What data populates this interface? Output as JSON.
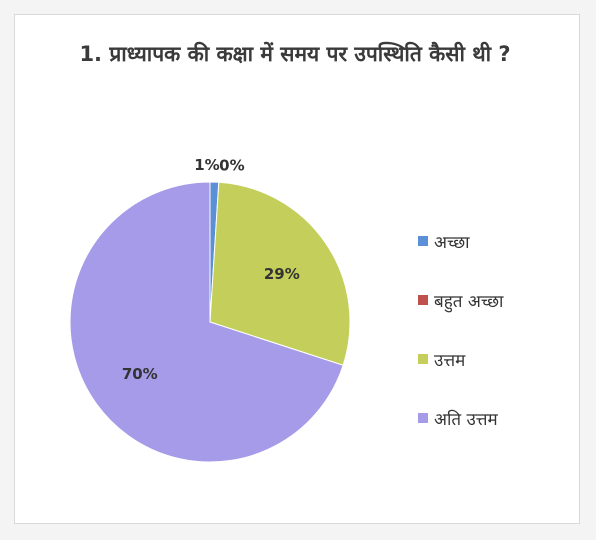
{
  "chart_data": {
    "type": "pie",
    "title": "1. प्राध्यापक की कक्षा में समय पर उपस्थिति कैसी थी ?",
    "categories": [
      "अच्छा",
      "बहुत अच्छा",
      "उत्तम",
      "अति उत्तम"
    ],
    "values": [
      1,
      0,
      29,
      70
    ],
    "value_labels": [
      "1%",
      "0%",
      "29%",
      "70%"
    ],
    "colors": [
      "#5b8fd6",
      "#c0504d",
      "#c3cf5a",
      "#a59be8"
    ],
    "legend_position": "right"
  }
}
